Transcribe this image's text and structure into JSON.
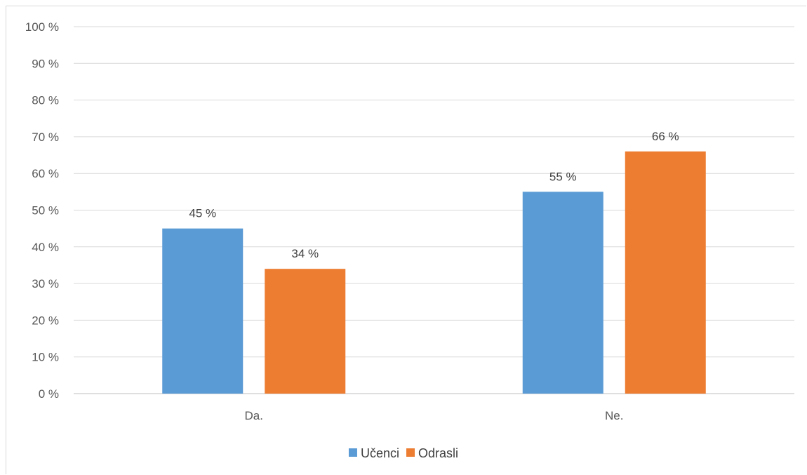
{
  "chart_data": {
    "type": "bar",
    "categories": [
      "Da.",
      "Ne."
    ],
    "series": [
      {
        "name": "Učenci",
        "color": "#5b9bd5",
        "values": [
          45,
          55
        ],
        "labels": [
          "45 %",
          "55 %"
        ]
      },
      {
        "name": "Odrasli",
        "color": "#ed7d31",
        "values": [
          34,
          66
        ],
        "labels": [
          "34 %",
          "66 %"
        ]
      }
    ],
    "title": "",
    "xlabel": "",
    "ylabel": "",
    "ylim": [
      0,
      100
    ],
    "yticks": [
      0,
      10,
      20,
      30,
      40,
      50,
      60,
      70,
      80,
      90,
      100
    ],
    "ytick_labels": [
      "0 %",
      "10 %",
      "20 %",
      "30 %",
      "40 %",
      "50 %",
      "60 %",
      "70 %",
      "80 %",
      "90 %",
      "100 %"
    ],
    "grid": true,
    "legend_position": "bottom"
  }
}
